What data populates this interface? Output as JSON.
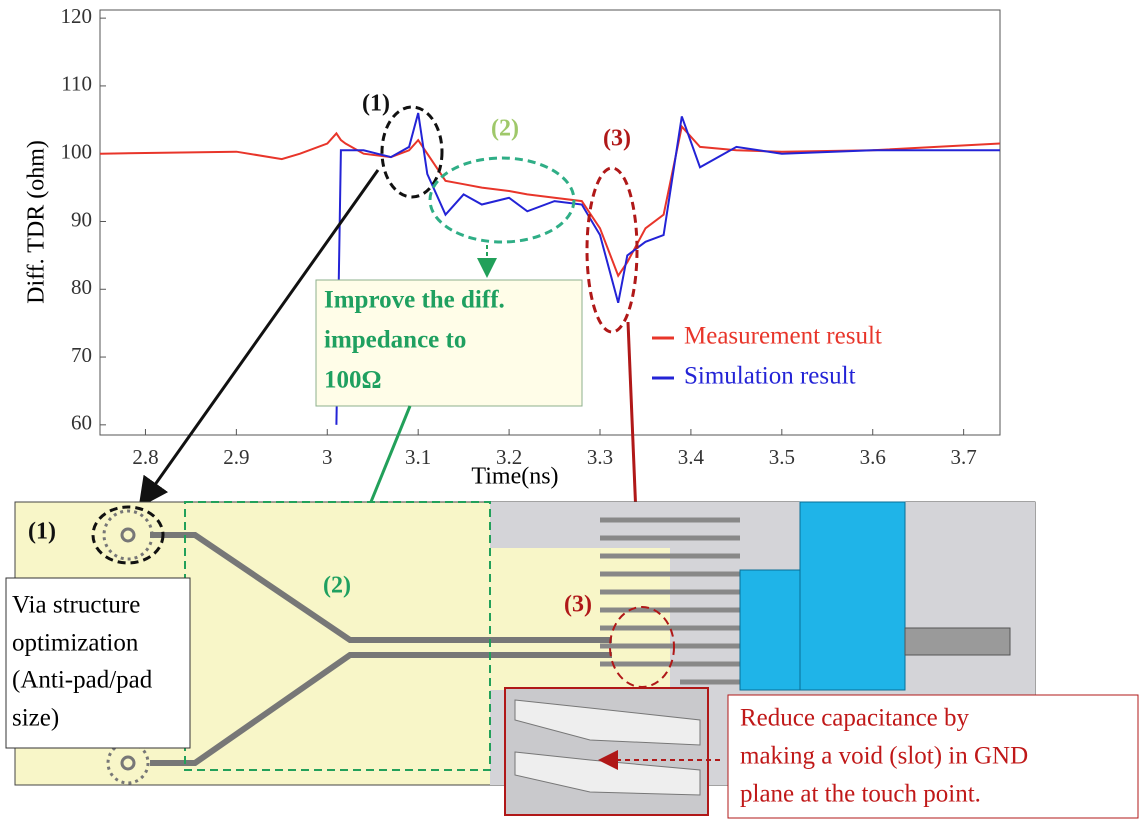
{
  "chart_data": {
    "type": "line",
    "x_label": "Time(ns)",
    "y_label": "Diff. TDR (ohm)",
    "x": [
      2.75,
      2.9,
      2.95,
      2.97,
      3.0,
      3.01,
      3.015,
      3.02,
      3.04,
      3.07,
      3.09,
      3.1,
      3.11,
      3.13,
      3.15,
      3.17,
      3.2,
      3.22,
      3.25,
      3.28,
      3.3,
      3.32,
      3.33,
      3.35,
      3.37,
      3.39,
      3.41,
      3.45,
      3.5,
      3.6,
      3.74
    ],
    "series": [
      {
        "name": "Measurement result",
        "color": "#e8352a",
        "values": [
          100,
          100.3,
          99.2,
          100,
          101.5,
          103,
          102,
          101.5,
          100,
          99.5,
          100.5,
          102,
          100,
          96,
          95.5,
          95,
          94.5,
          94,
          93.5,
          93,
          89,
          82,
          84,
          89,
          91,
          104,
          101,
          100.5,
          100.3,
          100.5,
          101.5
        ]
      },
      {
        "name": "Simulation result",
        "color": "#2323d6",
        "values": [
          null,
          null,
          null,
          null,
          null,
          60,
          100.5,
          100.5,
          100.5,
          99.5,
          101,
          106,
          97,
          91,
          94,
          92.5,
          93.5,
          91.5,
          93,
          92.5,
          88,
          78,
          85,
          87,
          88,
          105.5,
          98,
          101,
          100,
          100.5,
          100.5
        ]
      }
    ],
    "xlim": [
      2.75,
      3.74
    ],
    "ylim": [
      58.5,
      121.2
    ],
    "xticks": [
      2.8,
      2.9,
      3,
      3.1,
      3.2,
      3.3,
      3.4,
      3.5,
      3.6,
      3.7
    ],
    "yticks": [
      60,
      70,
      80,
      90,
      100,
      110,
      120
    ],
    "annotations": [
      "(1)",
      "(2)",
      "(3)"
    ],
    "callout": [
      "Improve the diff.",
      "impedance to",
      "100Ω"
    ]
  },
  "diagram": {
    "labels": [
      "(1)",
      "(2)",
      "(3)"
    ],
    "via_note": [
      "Via structure",
      "optimization",
      "(Anti-pad/pad",
      " size)"
    ],
    "capacitance_note": [
      "Reduce capacitance by",
      "making a void (slot) in GND",
      "plane at the touch point."
    ]
  }
}
